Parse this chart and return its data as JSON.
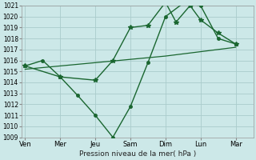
{
  "background_color": "#cce8e8",
  "grid_color": "#aacccc",
  "line_color": "#1a6630",
  "xlabel": "Pression niveau de la mer( hPa )",
  "ylim": [
    1009,
    1021
  ],
  "yticks": [
    1009,
    1010,
    1011,
    1012,
    1013,
    1014,
    1015,
    1016,
    1017,
    1018,
    1019,
    1020,
    1021
  ],
  "x_labels": [
    "Ven",
    "Mer",
    "Jeu",
    "Sam",
    "Dim",
    "Lun",
    "Mar"
  ],
  "x_positions": [
    0,
    1,
    2,
    3,
    4,
    5,
    6
  ],
  "series_jagged_x": [
    0,
    0.5,
    1.0,
    1.5,
    2.0,
    2.5,
    3.0,
    3.5,
    4.0,
    4.5,
    5.0,
    5.5,
    6.0
  ],
  "series_jagged_y": [
    1015.5,
    1016.0,
    1014.5,
    1012.8,
    1011.0,
    1009.0,
    1011.8,
    1015.8,
    1020.0,
    1021.2,
    1021.0,
    1018.0,
    1017.5
  ],
  "series_smooth_x": [
    0,
    1.0,
    2.0,
    2.5,
    3.0,
    3.5,
    4.0,
    4.3,
    4.7,
    5.0,
    5.5,
    6.0
  ],
  "series_smooth_y": [
    1015.5,
    1014.5,
    1014.2,
    1016.0,
    1019.0,
    1019.2,
    1021.3,
    1019.5,
    1021.0,
    1019.7,
    1018.5,
    1017.5
  ],
  "series_flat_x": [
    0,
    1,
    2,
    3,
    4,
    5,
    6
  ],
  "series_flat_y": [
    1015.2,
    1015.5,
    1015.8,
    1016.1,
    1016.4,
    1016.8,
    1017.2
  ]
}
